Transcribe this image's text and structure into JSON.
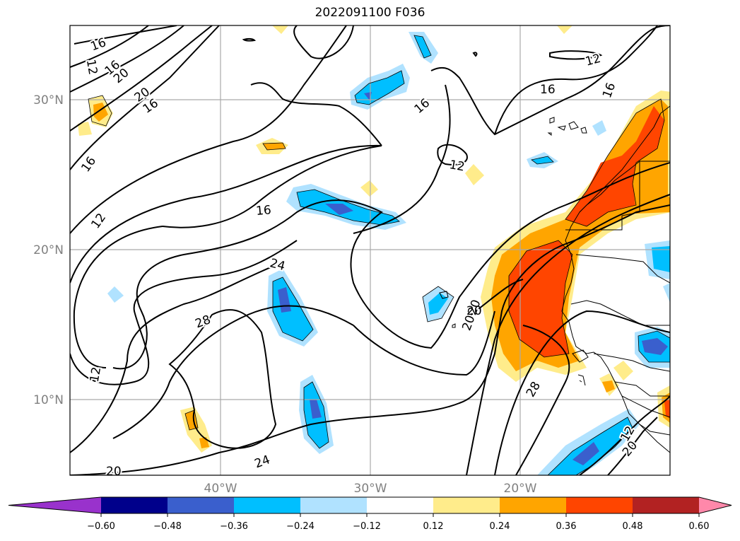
{
  "title": "2022091100 F036",
  "lat_labels": [
    "30°N",
    "20°N",
    "10°N"
  ],
  "lon_labels": [
    "40°W",
    "30°W",
    "20°W"
  ],
  "contour_labels": [
    "16",
    "16",
    "12",
    "20",
    "20",
    "16",
    "16",
    "16",
    "12",
    "12",
    "16",
    "12",
    "16",
    "16",
    "20",
    "24",
    "28",
    "24",
    "20",
    "12",
    "20",
    "20",
    "28",
    "20",
    "20",
    "12"
  ],
  "colorbar": {
    "ticks": [
      "−0.60",
      "−0.48",
      "−0.36",
      "−0.24",
      "−0.12",
      "0.12",
      "0.24",
      "0.36",
      "0.48",
      "0.60"
    ],
    "colors": [
      "#9932cc",
      "#00008b",
      "#3a5fcd",
      "#00bfff",
      "#b0e2ff",
      "#ffffff",
      "#ffec8b",
      "#ffa500",
      "#ff4500",
      "#b22222",
      "#ff88aa"
    ]
  },
  "colors": {
    "neg_light": "#b0e2ff",
    "neg_mid": "#00bfff",
    "neg_dark": "#3a5fcd",
    "pos_light": "#ffec8b",
    "pos_mid": "#ffa500",
    "pos_dark": "#ff4500"
  }
}
